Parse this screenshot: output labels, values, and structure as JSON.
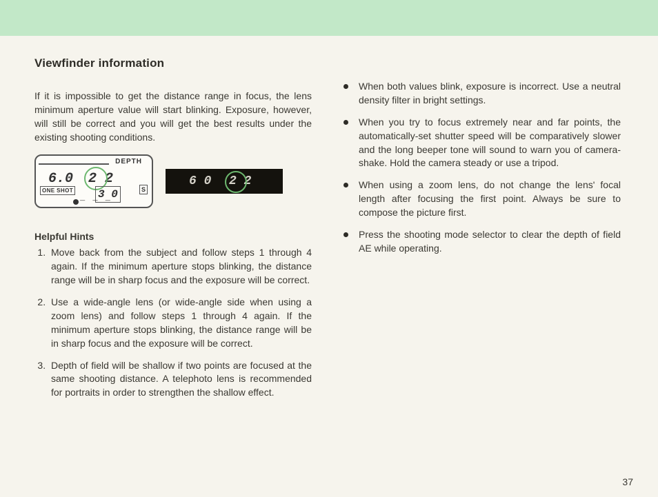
{
  "title": "Viewfinder information",
  "intro": "If it is impossible to get the distance range in focus, the lens minimum aperture value will start blinking. Exposure, however, will still be correct and you will get the best results under the existing shooting conditions.",
  "lcd": {
    "depth_label": "DEPTH",
    "val_a": "6.0",
    "val_b": "2 2",
    "oneshot": "ONE SHOT",
    "val_c": "3 0",
    "s_mark": "S",
    "under": "_ _ _"
  },
  "dark_lcd": {
    "v1": "6 0",
    "v2": "2 2"
  },
  "hints_title": "Helpful Hints",
  "hints": [
    "Move back from the subject and follow steps 1 through 4 again. If the minimum aperture stops blinking, the distance range will be in sharp focus and the exposure will be correct.",
    "Use a wide-angle lens (or wide-angle side when using a zoom lens) and follow steps 1 through 4 again. If the minimum aperture stops blinking, the distance range will be in sharp focus and the exposure will be correct.",
    "Depth of field will be shallow if two points are focused at the same shooting distance. A telephoto lens is recommended for portraits in order to strengthen the shallow effect."
  ],
  "bullets": [
    "When both values blink, exposure is incorrect. Use a neutral density filter in bright settings.",
    "When you try to focus extremely near and far points, the automatically-set shutter speed will be comparatively slower and the long beeper tone will sound to warn you of camera-shake. Hold the camera steady or use a tripod.",
    "When using a zoom lens, do not change the lens' focal length after focusing the first point. Always be sure to compose the picture first.",
    "Press the shooting mode selector to clear the depth of field AE while operating."
  ],
  "page_number": "37"
}
